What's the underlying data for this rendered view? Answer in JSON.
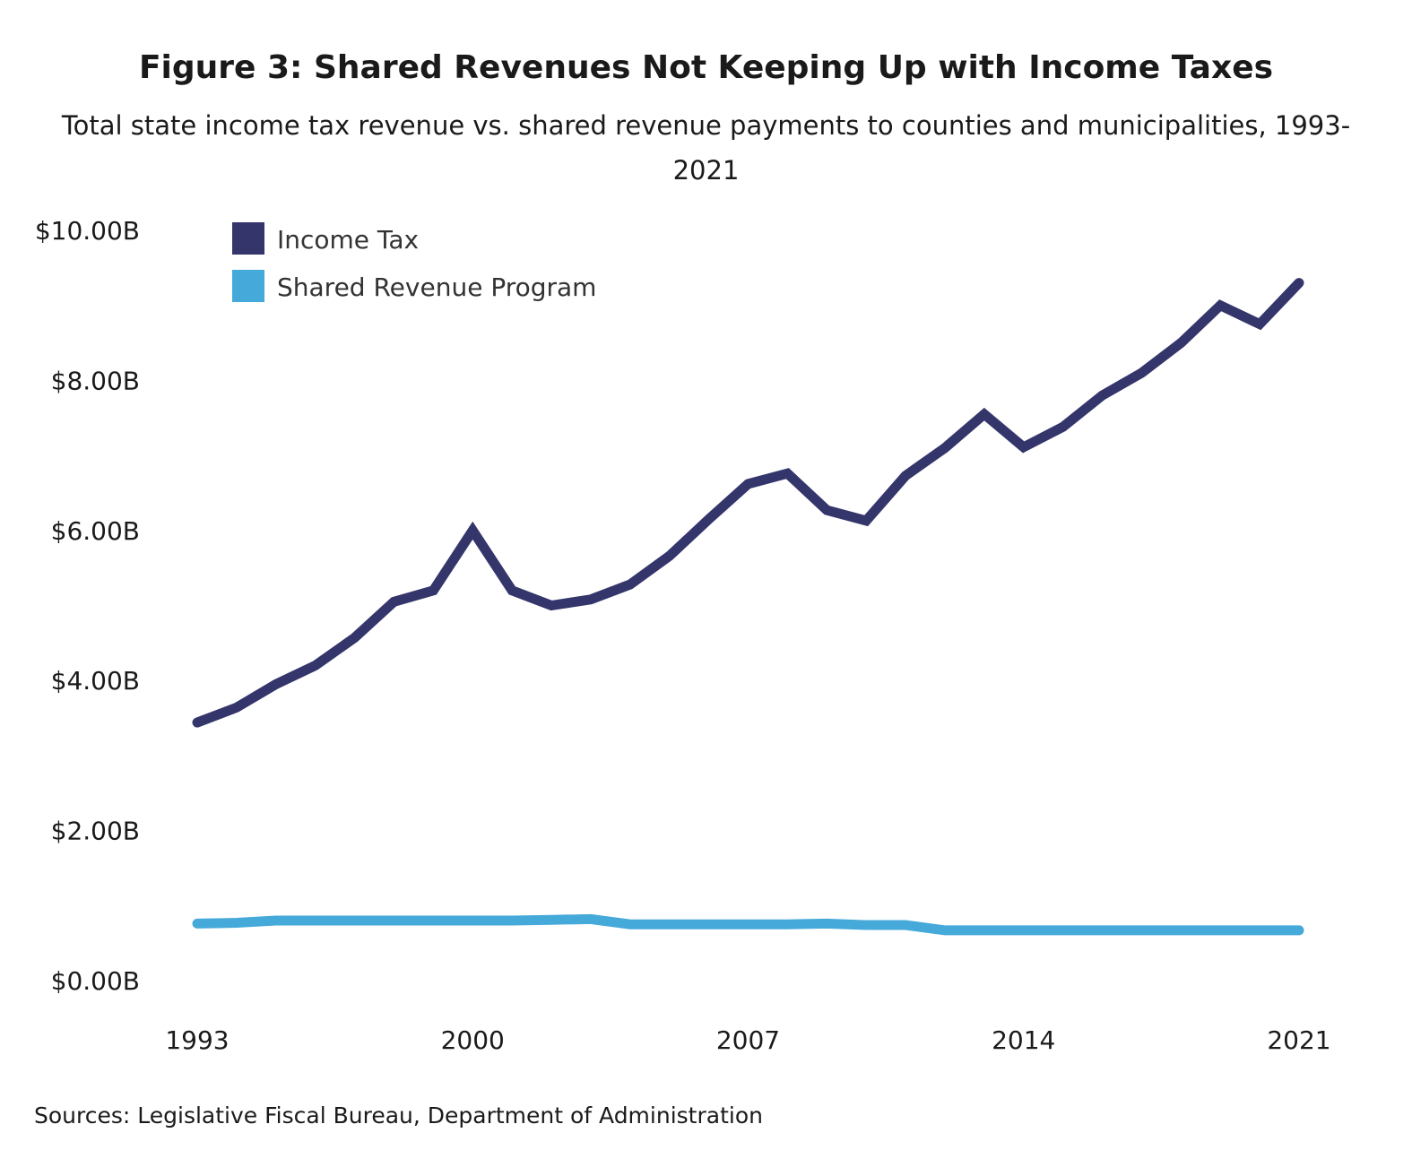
{
  "chart_data": {
    "type": "line",
    "title": "Figure 3: Shared Revenues Not Keeping Up with Income Taxes",
    "subtitle": "Total state income tax revenue vs. shared revenue payments to counties and municipalities, 1993-2021",
    "source": "Sources: Legislative Fiscal Bureau, Department of Administration",
    "xlabel": "",
    "ylabel": "",
    "x": [
      1993,
      1994,
      1995,
      1996,
      1997,
      1998,
      1999,
      2000,
      2001,
      2002,
      2003,
      2004,
      2005,
      2006,
      2007,
      2008,
      2009,
      2010,
      2011,
      2012,
      2013,
      2014,
      2015,
      2016,
      2017,
      2018,
      2019,
      2020,
      2021
    ],
    "x_ticks": [
      "1993",
      "2000",
      "2007",
      "2014",
      "2021"
    ],
    "y_ticks": [
      {
        "value": 0,
        "label": "$0.00B"
      },
      {
        "value": 2,
        "label": "$2.00B"
      },
      {
        "value": 4,
        "label": "$4.00B"
      },
      {
        "value": 6,
        "label": "$6.00B"
      },
      {
        "value": 8,
        "label": "$8.00B"
      },
      {
        "value": 10,
        "label": "$10.00B"
      }
    ],
    "ylim": [
      0,
      10
    ],
    "xlim": [
      1993,
      2021
    ],
    "grid": false,
    "legend_position": "top-left",
    "series": [
      {
        "name": "Income Tax",
        "color": "#34356b",
        "values": [
          3.44,
          3.64,
          3.95,
          4.2,
          4.57,
          5.05,
          5.2,
          6.0,
          5.2,
          5.0,
          5.08,
          5.28,
          5.66,
          6.15,
          6.62,
          6.76,
          6.27,
          6.13,
          6.73,
          7.1,
          7.55,
          7.11,
          7.38,
          7.8,
          8.1,
          8.5,
          9.0,
          8.75,
          9.3
        ]
      },
      {
        "name": "Shared Revenue Program",
        "color": "#45a9d9",
        "values": [
          0.76,
          0.77,
          0.8,
          0.8,
          0.8,
          0.8,
          0.8,
          0.8,
          0.8,
          0.81,
          0.82,
          0.75,
          0.75,
          0.75,
          0.75,
          0.75,
          0.76,
          0.74,
          0.74,
          0.67,
          0.67,
          0.67,
          0.67,
          0.67,
          0.67,
          0.67,
          0.67,
          0.67,
          0.67
        ]
      }
    ]
  }
}
